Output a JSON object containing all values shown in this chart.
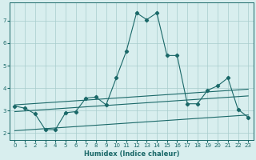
{
  "xlabel": "Humidex (Indice chaleur)",
  "bg_color": "#d8eeee",
  "grid_color": "#a8cccc",
  "line_color": "#1a6868",
  "xlim": [
    -0.5,
    23.5
  ],
  "ylim": [
    1.7,
    7.8
  ],
  "xticks": [
    0,
    1,
    2,
    3,
    4,
    5,
    6,
    7,
    8,
    9,
    10,
    11,
    12,
    13,
    14,
    15,
    16,
    17,
    18,
    19,
    20,
    21,
    22,
    23
  ],
  "yticks": [
    2,
    3,
    4,
    5,
    6,
    7
  ],
  "main_line": {
    "x": [
      0,
      1,
      2,
      3,
      4,
      5,
      6,
      7,
      8,
      9,
      10,
      11,
      12,
      13,
      14,
      15,
      16,
      17,
      18,
      19,
      20,
      21,
      22,
      23
    ],
    "y": [
      3.2,
      3.1,
      2.85,
      2.15,
      2.15,
      2.9,
      2.95,
      3.55,
      3.6,
      3.25,
      4.45,
      5.65,
      7.35,
      7.05,
      7.35,
      5.45,
      5.45,
      3.3,
      3.3,
      3.9,
      4.1,
      4.45,
      3.05,
      2.7
    ]
  },
  "upper_trend": {
    "x": [
      0,
      23
    ],
    "y": [
      3.25,
      3.95
    ]
  },
  "middle_trend": {
    "x": [
      0,
      23
    ],
    "y": [
      2.95,
      3.65
    ]
  },
  "lower_trend": {
    "x": [
      0,
      23
    ],
    "y": [
      2.1,
      2.8
    ]
  }
}
